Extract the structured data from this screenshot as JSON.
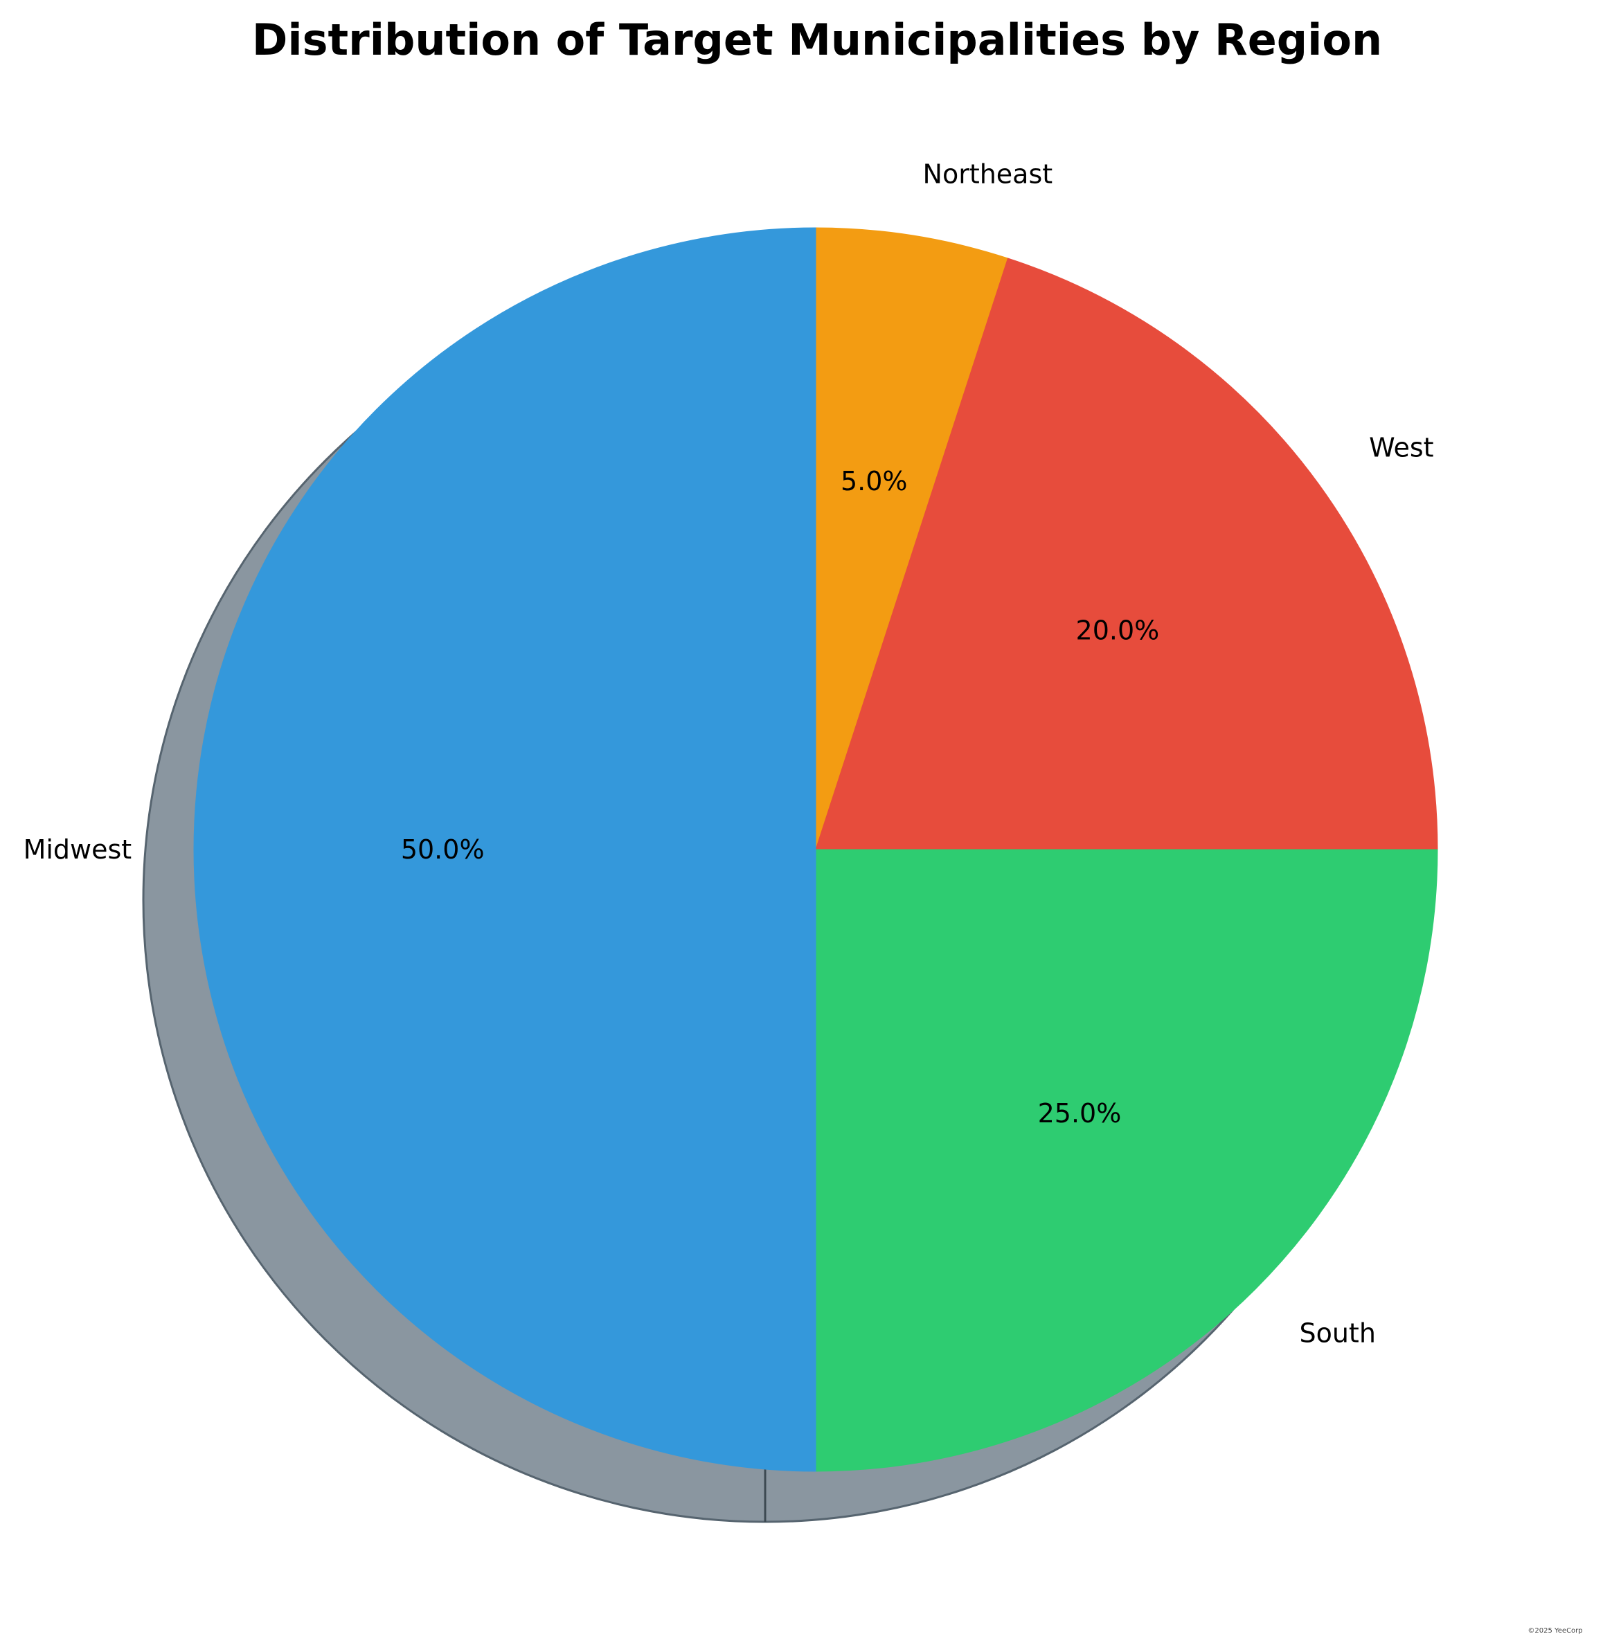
{
  "chart_data": {
    "type": "pie",
    "title": "Distribution of Target Municipalities by Region",
    "categories": [
      "Northeast",
      "West",
      "South",
      "Midwest"
    ],
    "values": [
      5.0,
      20.0,
      25.0,
      50.0
    ],
    "percent_labels": [
      "5.0%",
      "20.0%",
      "25.0%",
      "50.0%"
    ],
    "colors": [
      "#f39c12",
      "#e74c3c",
      "#2ecc71",
      "#3498db"
    ],
    "shadow": true,
    "start": "top",
    "direction": "clockwise"
  },
  "footer": {
    "copyright": "©2025 YeeCorp"
  }
}
